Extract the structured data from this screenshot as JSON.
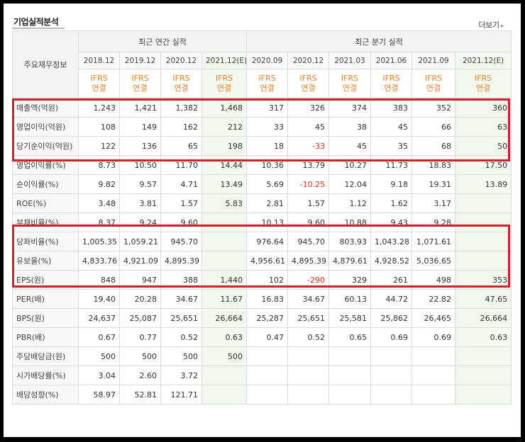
{
  "page": {
    "title": "기업실적분석",
    "more_label": "더보기",
    "more_icon": "chevron-right-icon"
  },
  "table": {
    "row_header_label": "주요재무정보",
    "groups": {
      "annual": "최근 연간 실적",
      "quarterly": "최근 분기 실적"
    },
    "periods": [
      "2018.12",
      "2019.12",
      "2020.12",
      "2021.12(E)",
      "2020.09",
      "2020.12",
      "2021.03",
      "2021.06",
      "2021.09",
      "2021.12(E)"
    ],
    "ifrs_label_1": "IFRS",
    "ifrs_label_2": "연결",
    "rows": [
      {
        "label": "매출액(억원)",
        "values": [
          "1,243",
          "1,421",
          "1,382",
          "1,468",
          "317",
          "326",
          "374",
          "383",
          "352",
          "360"
        ]
      },
      {
        "label": "영업이익(억원)",
        "values": [
          "108",
          "149",
          "162",
          "212",
          "33",
          "45",
          "38",
          "45",
          "66",
          "63"
        ]
      },
      {
        "label": "당기순이익(억원)",
        "values": [
          "122",
          "136",
          "65",
          "198",
          "18",
          "-33",
          "45",
          "35",
          "68",
          "50"
        ]
      },
      {
        "label": "영업이익률(%)",
        "values": [
          "8.73",
          "10.50",
          "11.70",
          "14.44",
          "10.36",
          "13.79",
          "10.27",
          "11.73",
          "18.83",
          "17.50"
        ]
      },
      {
        "label": "순이익률(%)",
        "values": [
          "9.82",
          "9.57",
          "4.71",
          "13.49",
          "5.69",
          "-10.25",
          "12.04",
          "9.18",
          "19.31",
          "13.89"
        ]
      },
      {
        "label": "ROE(%)",
        "values": [
          "3.48",
          "3.81",
          "1.57",
          "5.83",
          "2.81",
          "1.57",
          "1.12",
          "1.62",
          "3.17",
          ""
        ]
      },
      {
        "label": "부채비율(%)",
        "values": [
          "8.37",
          "9.24",
          "9.60",
          "",
          "10.13",
          "9.60",
          "10.88",
          "9.43",
          "9.28",
          ""
        ]
      },
      {
        "label": "당좌비율(%)",
        "values": [
          "1,005.35",
          "1,059.21",
          "945.70",
          "",
          "976.64",
          "945.70",
          "803.93",
          "1,043.28",
          "1,071.61",
          ""
        ]
      },
      {
        "label": "유보율(%)",
        "values": [
          "4,833.76",
          "4,921.09",
          "4,895.39",
          "",
          "4,956.61",
          "4,895.39",
          "4,879.61",
          "4,928.52",
          "5,036.65",
          ""
        ]
      },
      {
        "label": "EPS(원)",
        "values": [
          "848",
          "947",
          "388",
          "1,440",
          "102",
          "-290",
          "329",
          "261",
          "498",
          "353"
        ]
      },
      {
        "label": "PER(배)",
        "values": [
          "19.40",
          "20.28",
          "34.67",
          "11.67",
          "16.83",
          "34.67",
          "60.13",
          "44.72",
          "22.82",
          "47.65"
        ]
      },
      {
        "label": "BPS(원)",
        "values": [
          "24,637",
          "25,087",
          "25,651",
          "26,664",
          "25,287",
          "25,651",
          "25,581",
          "25,862",
          "26,465",
          "26,664"
        ]
      },
      {
        "label": "PBR(배)",
        "values": [
          "0.67",
          "0.77",
          "0.52",
          "0.63",
          "0.47",
          "0.52",
          "0.65",
          "0.69",
          "0.69",
          "0.63"
        ]
      },
      {
        "label": "주당배당금(원)",
        "values": [
          "500",
          "500",
          "500",
          "500",
          "",
          "",
          "",
          "",
          "",
          ""
        ]
      },
      {
        "label": "시가배당률(%)",
        "values": [
          "3.04",
          "2.60",
          "3.72",
          "",
          "",
          "",
          "",
          "",
          "",
          ""
        ]
      },
      {
        "label": "배당성향(%)",
        "values": [
          "58.97",
          "52.81",
          "121.71",
          "",
          "",
          "",
          "",
          "",
          "",
          ""
        ]
      }
    ]
  },
  "colors": {
    "highlight_box": "#d2202a",
    "ifrs_text": "#f08228",
    "negative": "#e2301b",
    "estimate_bg": "#f1f8ee"
  }
}
